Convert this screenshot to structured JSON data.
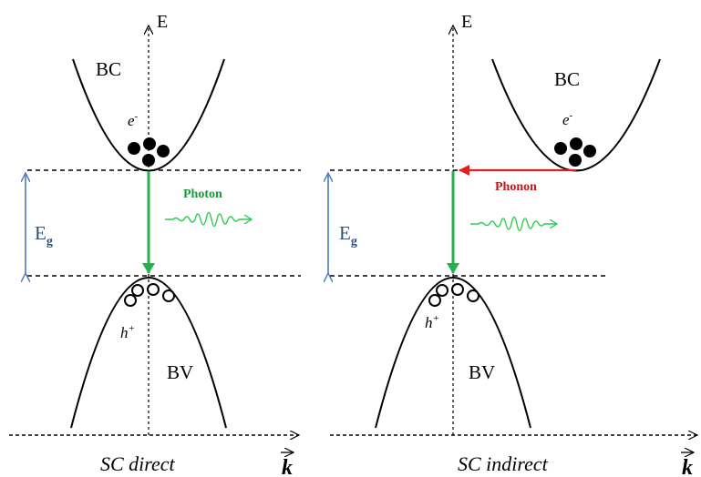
{
  "axes": {
    "energy_label": "E",
    "momentum_label": "k"
  },
  "panels": [
    {
      "id": "direct",
      "caption": "SC direct",
      "conduction_band_label": "BC",
      "valence_band_label": "BV",
      "electron_label": "e",
      "electron_superscript": "-",
      "hole_label": "h",
      "hole_superscript": "+",
      "gap_label": "E",
      "gap_subscript": "g",
      "emission_label": "Photon"
    },
    {
      "id": "indirect",
      "caption": "SC indirect",
      "conduction_band_label": "BC",
      "valence_band_label": "BV",
      "electron_label": "e",
      "electron_superscript": "-",
      "hole_label": "h",
      "hole_superscript": "+",
      "gap_label": "E",
      "gap_subscript": "g",
      "phonon_label": "Phonon"
    }
  ],
  "colors": {
    "transition": "#22b14c",
    "photon_wave": "#2ecc50",
    "photon_text": "#1a9a3a",
    "phonon": "#e02020",
    "phonon_text": "#c01818",
    "gap_arrow": "#4a7fc0",
    "gap_text": "#2c4f7c",
    "line": "#000000"
  }
}
